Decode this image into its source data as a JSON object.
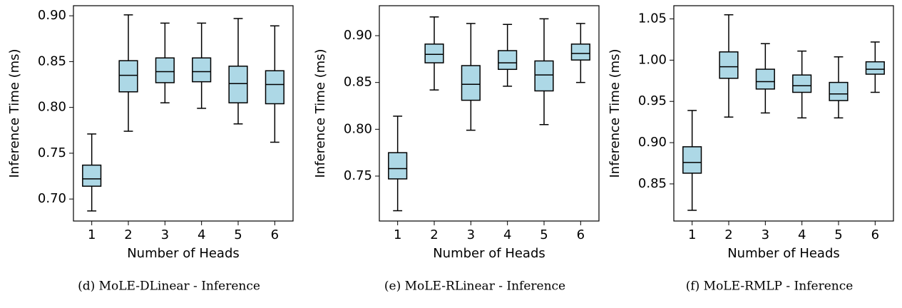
{
  "chart_data": [
    {
      "type": "box",
      "title": "(d) MoLE-DLinear - Inference",
      "x_label": "Number of Heads",
      "y_label": "Inference Time (ms)",
      "categories": [
        "1",
        "2",
        "3",
        "4",
        "5",
        "6"
      ],
      "color": "#add8e6",
      "boxes": [
        {
          "low": 0.687,
          "q1": 0.714,
          "median": 0.722,
          "q3": 0.737,
          "high": 0.771
        },
        {
          "low": 0.774,
          "q1": 0.817,
          "median": 0.835,
          "q3": 0.851,
          "high": 0.901
        },
        {
          "low": 0.805,
          "q1": 0.827,
          "median": 0.839,
          "q3": 0.854,
          "high": 0.892
        },
        {
          "low": 0.799,
          "q1": 0.828,
          "median": 0.839,
          "q3": 0.854,
          "high": 0.892
        },
        {
          "low": 0.782,
          "q1": 0.805,
          "median": 0.826,
          "q3": 0.845,
          "high": 0.897
        },
        {
          "low": 0.762,
          "q1": 0.804,
          "median": 0.825,
          "q3": 0.84,
          "high": 0.889
        }
      ],
      "ylim": [
        0.676,
        0.911
      ],
      "yticks": [
        {
          "value": 0.7,
          "label": "0.70"
        },
        0.75,
        {
          "value": 0.8,
          "label": "0.80"
        },
        0.85,
        {
          "value": 0.9,
          "label": "0.90"
        }
      ]
    },
    {
      "type": "box",
      "title": "(e) MoLE-RLinear - Inference",
      "x_label": "Number of Heads",
      "y_label": "Inference Time (ms)",
      "categories": [
        "1",
        "2",
        "3",
        "4",
        "5",
        "6"
      ],
      "color": "#add8e6",
      "boxes": [
        {
          "low": 0.713,
          "q1": 0.747,
          "median": 0.758,
          "q3": 0.775,
          "high": 0.814
        },
        {
          "low": 0.842,
          "q1": 0.871,
          "median": 0.88,
          "q3": 0.891,
          "high": 0.92
        },
        {
          "low": 0.799,
          "q1": 0.831,
          "median": 0.848,
          "q3": 0.868,
          "high": 0.913
        },
        {
          "low": 0.846,
          "q1": 0.864,
          "median": 0.871,
          "q3": 0.884,
          "high": 0.912
        },
        {
          "low": 0.805,
          "q1": 0.841,
          "median": 0.858,
          "q3": 0.873,
          "high": 0.918
        },
        {
          "low": 0.85,
          "q1": 0.874,
          "median": 0.881,
          "q3": 0.891,
          "high": 0.913
        }
      ],
      "ylim": [
        0.702,
        0.932
      ],
      "yticks": [
        0.75,
        {
          "value": 0.8,
          "label": "0.80"
        },
        0.85,
        {
          "value": 0.9,
          "label": "0.90"
        }
      ]
    },
    {
      "type": "box",
      "title": "(f) MoLE-RMLP - Inference",
      "x_label": "Number of Heads",
      "y_label": "Inference Time (ms)",
      "categories": [
        "1",
        "2",
        "3",
        "4",
        "5",
        "6"
      ],
      "color": "#add8e6",
      "boxes": [
        {
          "low": 0.818,
          "q1": 0.863,
          "median": 0.876,
          "q3": 0.895,
          "high": 0.939
        },
        {
          "low": 0.931,
          "q1": 0.978,
          "median": 0.992,
          "q3": 1.01,
          "high": 1.055
        },
        {
          "low": 0.936,
          "q1": 0.965,
          "median": 0.974,
          "q3": 0.989,
          "high": 1.02
        },
        {
          "low": 0.93,
          "q1": 0.961,
          "median": 0.969,
          "q3": 0.982,
          "high": 1.011
        },
        {
          "low": 0.93,
          "q1": 0.951,
          "median": 0.959,
          "q3": 0.973,
          "high": 1.004
        },
        {
          "low": 0.961,
          "q1": 0.983,
          "median": 0.989,
          "q3": 0.998,
          "high": 1.022
        }
      ],
      "ylim": [
        0.805,
        1.066
      ],
      "yticks": [
        0.85,
        {
          "value": 0.9,
          "label": "0.90"
        },
        0.95,
        {
          "value": 1.0,
          "label": "1.00"
        },
        1.05
      ]
    }
  ]
}
